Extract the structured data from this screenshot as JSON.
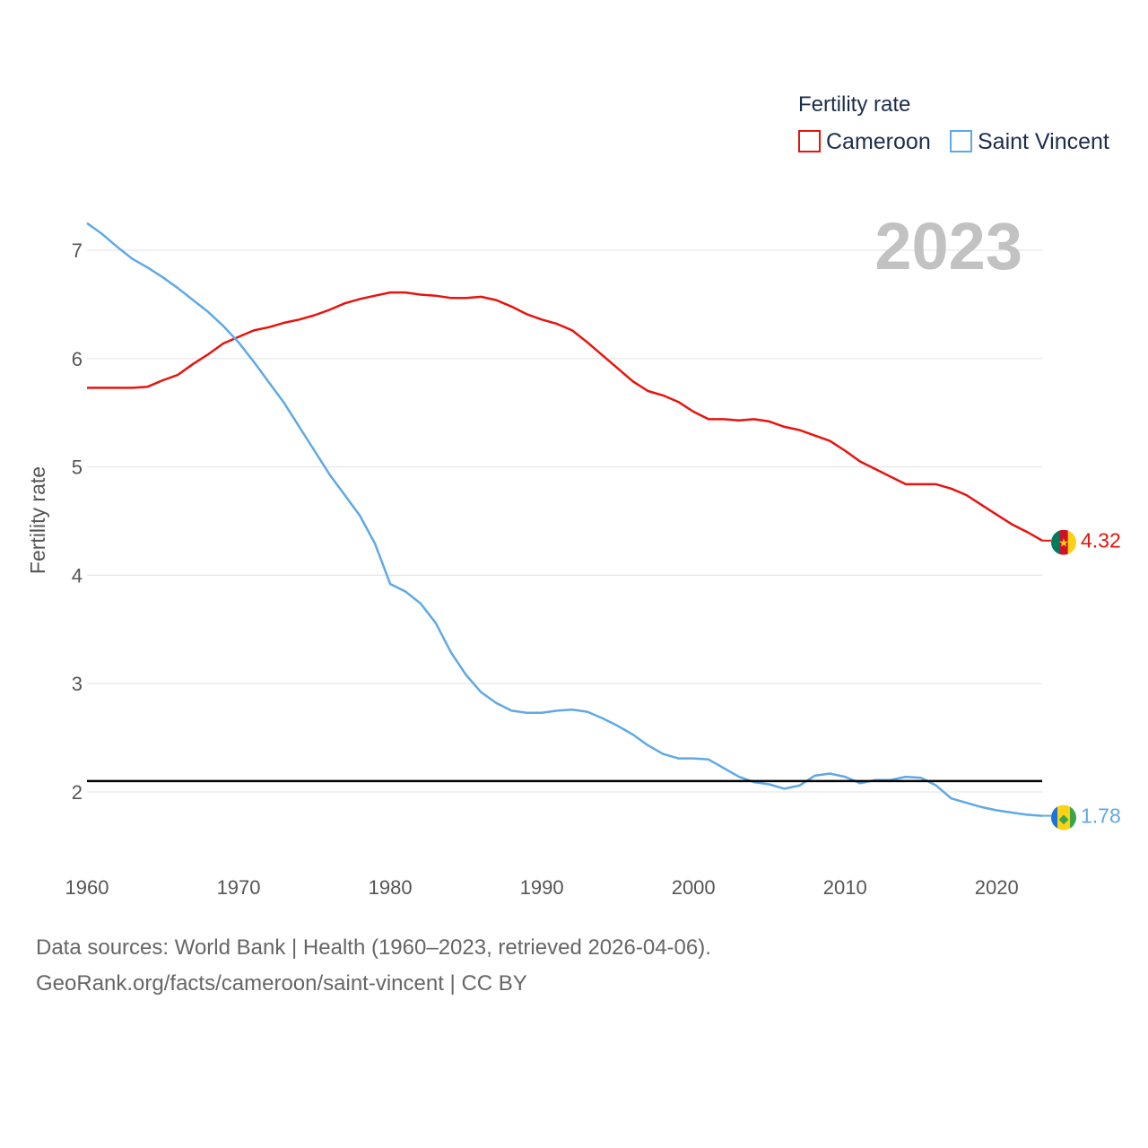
{
  "chart_data": {
    "type": "line",
    "ylabel": "Fertility rate",
    "legend_title": "Fertility rate",
    "legend_position": "top-right",
    "year_label": "2023",
    "xlim": [
      1960,
      2023
    ],
    "ylim": [
      1.4,
      7.6
    ],
    "x_ticks": [
      1960,
      1970,
      1980,
      1990,
      2000,
      2010,
      2020
    ],
    "y_ticks": [
      2,
      3,
      4,
      5,
      6,
      7
    ],
    "reference_line": 2.1,
    "x": [
      1960,
      1961,
      1962,
      1963,
      1964,
      1965,
      1966,
      1967,
      1968,
      1969,
      1970,
      1971,
      1972,
      1973,
      1974,
      1975,
      1976,
      1977,
      1978,
      1979,
      1980,
      1981,
      1982,
      1983,
      1984,
      1985,
      1986,
      1987,
      1988,
      1989,
      1990,
      1991,
      1992,
      1993,
      1994,
      1995,
      1996,
      1997,
      1998,
      1999,
      2000,
      2001,
      2002,
      2003,
      2004,
      2005,
      2006,
      2007,
      2008,
      2009,
      2010,
      2011,
      2012,
      2013,
      2014,
      2015,
      2016,
      2017,
      2018,
      2019,
      2020,
      2021,
      2022,
      2023
    ],
    "series": [
      {
        "name": "Cameroon",
        "color": "#e8130e",
        "end_label": "4.32",
        "flag": "cameroon-flag",
        "values": [
          5.73,
          5.73,
          5.73,
          5.73,
          5.74,
          5.8,
          5.85,
          5.95,
          6.04,
          6.14,
          6.2,
          6.26,
          6.29,
          6.33,
          6.36,
          6.4,
          6.45,
          6.51,
          6.55,
          6.58,
          6.61,
          6.61,
          6.59,
          6.58,
          6.56,
          6.56,
          6.57,
          6.54,
          6.48,
          6.41,
          6.36,
          6.32,
          6.26,
          6.15,
          6.03,
          5.91,
          5.79,
          5.7,
          5.66,
          5.6,
          5.51,
          5.44,
          5.44,
          5.43,
          5.44,
          5.42,
          5.37,
          5.34,
          5.29,
          5.24,
          5.15,
          5.05,
          4.98,
          4.91,
          4.84,
          4.84,
          4.84,
          4.8,
          4.74,
          4.65,
          4.56,
          4.47,
          4.4,
          4.32
        ]
      },
      {
        "name": "Saint Vincent",
        "color": "#5ea9e6",
        "end_label": "1.78",
        "flag": "saint-vincent-flag",
        "values": [
          7.25,
          7.15,
          7.03,
          6.92,
          6.84,
          6.75,
          6.65,
          6.54,
          6.43,
          6.3,
          6.15,
          5.97,
          5.78,
          5.59,
          5.37,
          5.15,
          4.93,
          4.74,
          4.55,
          4.29,
          3.92,
          3.85,
          3.74,
          3.56,
          3.29,
          3.08,
          2.92,
          2.82,
          2.75,
          2.73,
          2.73,
          2.75,
          2.76,
          2.74,
          2.68,
          2.61,
          2.53,
          2.43,
          2.35,
          2.31,
          2.31,
          2.3,
          2.22,
          2.14,
          2.09,
          2.07,
          2.03,
          2.06,
          2.15,
          2.17,
          2.14,
          2.08,
          2.11,
          2.11,
          2.14,
          2.13,
          2.06,
          1.94,
          1.9,
          1.86,
          1.83,
          1.81,
          1.79,
          1.78
        ]
      }
    ]
  },
  "footer": {
    "line1": "Data sources: World Bank | Health (1960–2023, retrieved 2026-04-06).",
    "line2": "GeoRank.org/facts/cameroon/saint-vincent | CC BY"
  }
}
